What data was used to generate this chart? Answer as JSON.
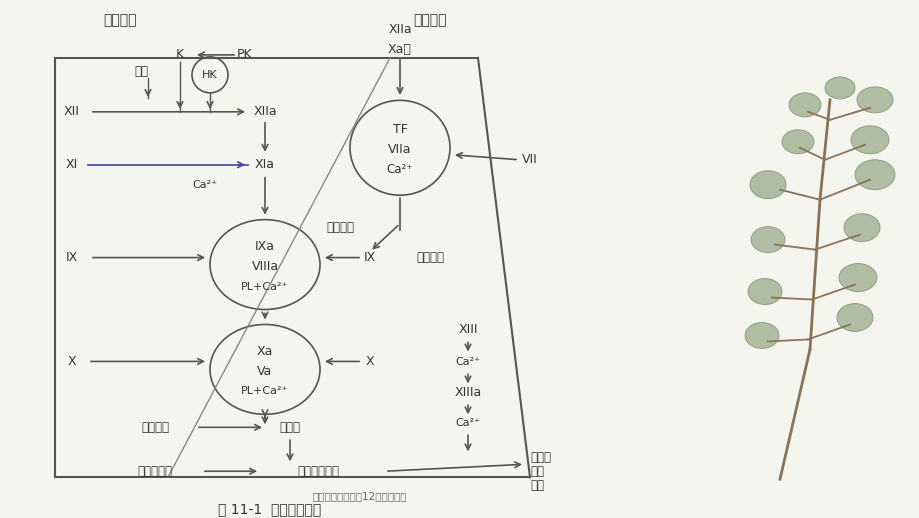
{
  "title": "图 11-1  血液凝固机制",
  "subtitle": "医学超级全之病生12凝血与抗凝",
  "bg_color": "#f5f5f0",
  "line_color": "#555555",
  "text_color": "#333333",
  "inner_system_label": "内凝系统",
  "outer_system_label": "外凝系统",
  "tree_branch_color": "#8B7355",
  "tree_leaf_color": "#9aab8a",
  "tree_leaf_edge": "#7a8f6a"
}
